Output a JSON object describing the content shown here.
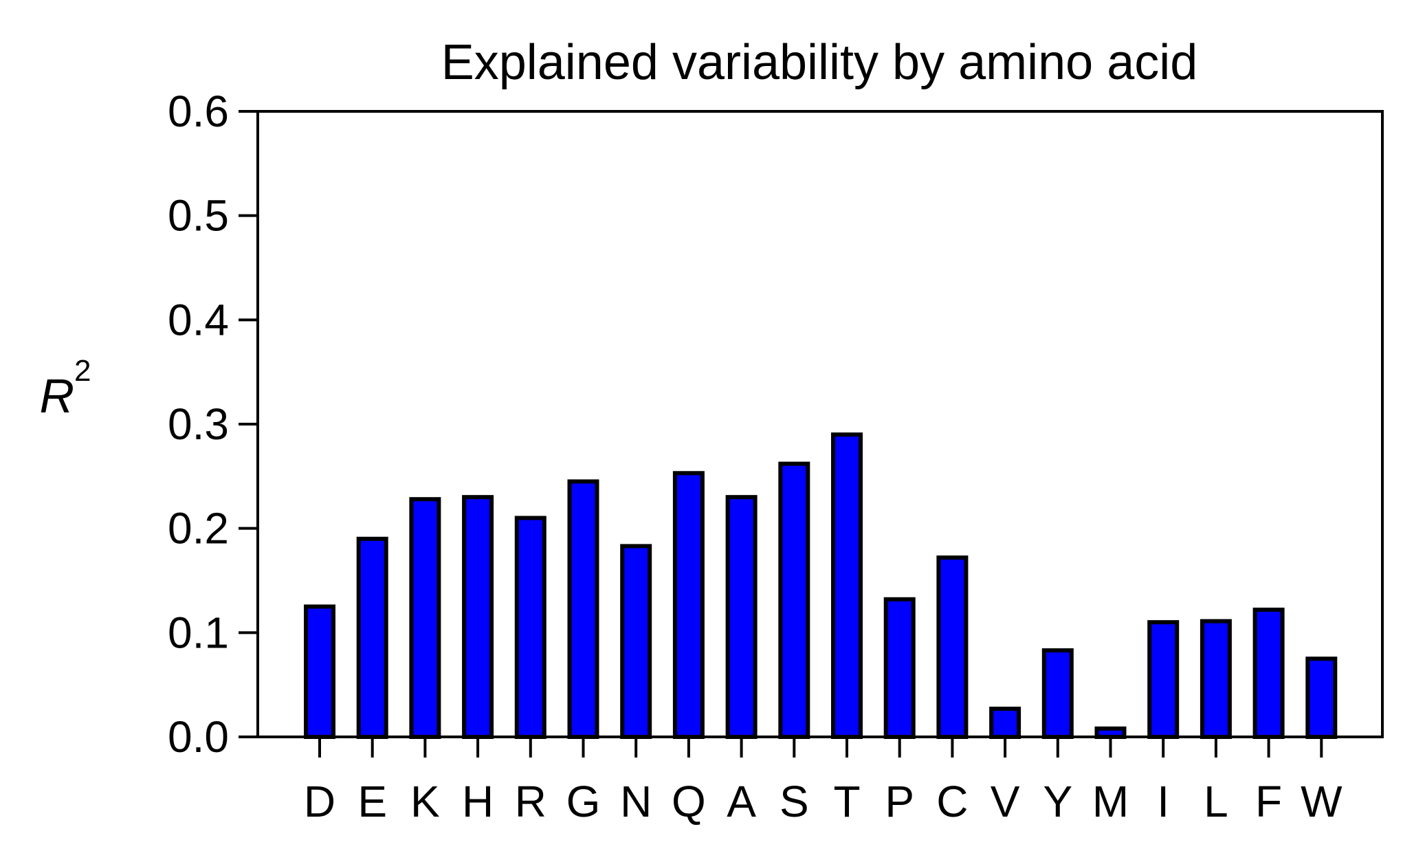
{
  "chart_data": {
    "type": "bar",
    "title": "Explained variability by amino acid",
    "xlabel": "",
    "ylabel": "R",
    "ylabel_superscript": "2",
    "categories": [
      "D",
      "E",
      "K",
      "H",
      "R",
      "G",
      "N",
      "Q",
      "A",
      "S",
      "T",
      "P",
      "C",
      "V",
      "Y",
      "M",
      "I",
      "L",
      "F",
      "W"
    ],
    "values": [
      0.125,
      0.19,
      0.228,
      0.23,
      0.21,
      0.245,
      0.183,
      0.253,
      0.23,
      0.262,
      0.29,
      0.132,
      0.172,
      0.027,
      0.083,
      0.008,
      0.11,
      0.111,
      0.122,
      0.075
    ],
    "ylim": [
      0,
      0.6
    ],
    "yticks": [
      "0.0",
      "0.1",
      "0.2",
      "0.3",
      "0.4",
      "0.5",
      "0.6"
    ],
    "grid": false,
    "legend": "none",
    "colors": {
      "bar_fill": "#0000ff",
      "bar_edge": "#000000",
      "axis": "#000000",
      "text": "#000000"
    }
  }
}
